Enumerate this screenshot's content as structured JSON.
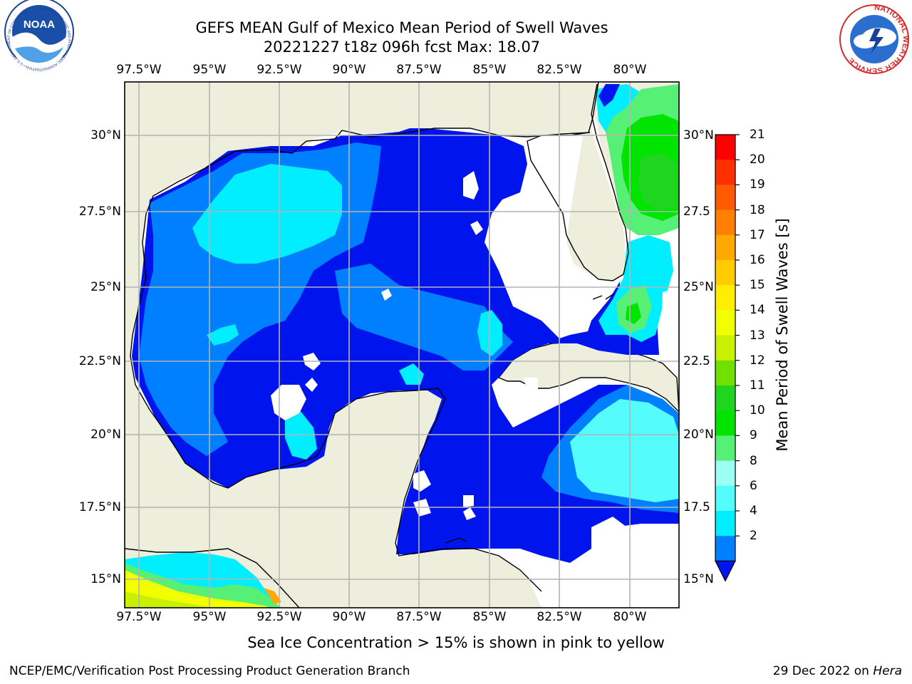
{
  "title": {
    "line1": "GEFS MEAN Gulf of Mexico Mean Period of Swell Waves",
    "line2": "20221227 t18z 096h fcst   Max: 18.07"
  },
  "logos": {
    "noaa_text": "NOAA",
    "noaa_ring": "NATIONAL OCEANIC AND ATMOSPHERIC ADMINISTRATION • U.S. DEPARTMENT OF COMMERCE",
    "nws_ring": "NATIONAL WEATHER SERVICE"
  },
  "map": {
    "lon_ticks": [
      "97.5°W",
      "95°W",
      "92.5°W",
      "90°W",
      "87.5°W",
      "85°W",
      "82.5°W",
      "80°W"
    ],
    "lat_ticks_left": [
      "30°N",
      "27.5°N",
      "25°N",
      "22.5°N",
      "20°N",
      "17.5°N",
      "15°N"
    ],
    "lat_ticks_right": [
      "30°N",
      "27.5",
      "25°N",
      "22.5",
      "20°N",
      "17.5",
      "15°N"
    ],
    "land_color": "#eeeedd",
    "grid_color": "#b4b4b4"
  },
  "colorbar": {
    "title": "Mean Period of Swell Waves [s]",
    "labels": [
      "21",
      "20",
      "19",
      "18",
      "17",
      "16",
      "15",
      "14",
      "13",
      "12",
      "11",
      "10",
      "9",
      "8",
      "6",
      "4",
      "2"
    ],
    "colors": [
      "#ff0000",
      "#ff3000",
      "#ff5a00",
      "#ff8000",
      "#ffa800",
      "#ffcc00",
      "#ffee00",
      "#f2ff00",
      "#c8f000",
      "#70e000",
      "#1fd51f",
      "#00e400",
      "#55f075",
      "#9cfff5",
      "#55fcfc",
      "#00eeff",
      "#0080ff"
    ],
    "extend_color": "#0014ee"
  },
  "note": "Sea Ice Concentration > 15% is shown in pink to yellow",
  "footer": {
    "left": "NCEP/EMC/Verification Post Processing Product Generation Branch",
    "date": "29 Dec 2022 on ",
    "host": "Hera"
  }
}
